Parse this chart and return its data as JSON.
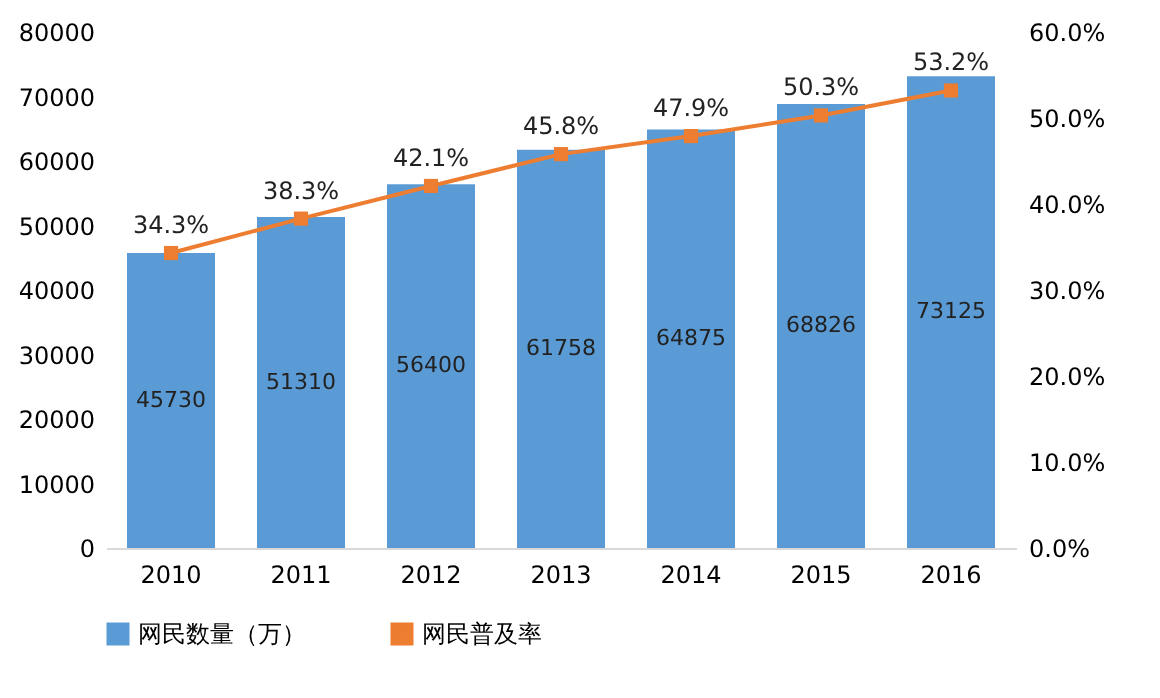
{
  "chart_data": {
    "type": "bar",
    "categories": [
      "2010",
      "2011",
      "2012",
      "2013",
      "2014",
      "2015",
      "2016"
    ],
    "series": [
      {
        "name": "网民数量（万）",
        "color": "#5b9bd5",
        "values": [
          45730,
          51310,
          56400,
          61758,
          64875,
          68826,
          73125
        ],
        "value_labels": [
          "45730",
          "51310",
          "56400",
          "61758",
          "64875",
          "68826",
          "73125"
        ]
      },
      {
        "name": "网民普及率",
        "type": "line",
        "axis": "y2",
        "color": "#ed7d31",
        "marker": "square",
        "values": [
          34.3,
          38.3,
          42.1,
          45.8,
          47.9,
          50.3,
          53.2
        ],
        "value_labels": [
          "34.3%",
          "38.3%",
          "42.1%",
          "45.8%",
          "47.9%",
          "50.3%",
          "53.2%"
        ]
      }
    ],
    "ylim": [
      0,
      80000
    ],
    "yticks": [
      0,
      10000,
      20000,
      30000,
      40000,
      50000,
      60000,
      70000,
      80000
    ],
    "y2lim": [
      0,
      60
    ],
    "y2ticks": [
      {
        "value": 0,
        "label": "0.0%"
      },
      {
        "value": 10,
        "label": "10.0%"
      },
      {
        "value": 20,
        "label": "20.0%"
      },
      {
        "value": 30,
        "label": "30.0%"
      },
      {
        "value": 40,
        "label": "40.0%"
      },
      {
        "value": 50,
        "label": "50.0%"
      },
      {
        "value": 60,
        "label": "60.0%"
      }
    ],
    "legend": "bottom",
    "grid": false
  }
}
